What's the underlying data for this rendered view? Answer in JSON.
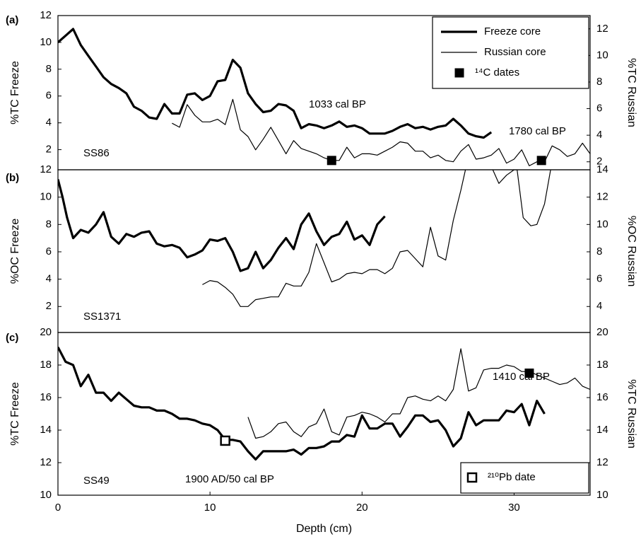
{
  "chart_data": [
    {
      "type": "line",
      "ylabel": "%TC Freeze",
      "y2label": "%TC Russian",
      "annotations": [
        "(a)",
        "SS86",
        "1033 cal BP",
        "1780 cal BP"
      ],
      "xlim": [
        0,
        35
      ],
      "ylim": [
        0.5,
        12
      ],
      "y2lim": [
        1.4,
        13
      ],
      "yticks": [
        2,
        4,
        6,
        8,
        10,
        12
      ],
      "y2ticks": [
        2,
        4,
        6,
        8,
        10,
        12
      ],
      "legend": "upper right",
      "series": [
        {
          "name": "Freeze core",
          "color": "#000000",
          "line_width": 3.2,
          "x": [
            0,
            0.5,
            1,
            1.5,
            2,
            2.5,
            3,
            3.5,
            4,
            4.5,
            5,
            5.5,
            6,
            6.5,
            7,
            7.5,
            8,
            8.5,
            9,
            9.5,
            10,
            10.5,
            11,
            11.5,
            12,
            12.5,
            13,
            13.5,
            14,
            14.5,
            15,
            15.5,
            16,
            16.5,
            17,
            17.5,
            18,
            18.5,
            19,
            19.5,
            20,
            20.5,
            21,
            21.5,
            22,
            22.5,
            23,
            23.5,
            24,
            24.5,
            25,
            25.5,
            26,
            26.5,
            27,
            27.5,
            28,
            28.5
          ],
          "values": [
            10,
            10.5,
            11,
            9.8,
            9,
            8.2,
            7.4,
            6.9,
            6.6,
            6.2,
            5.2,
            4.9,
            4.4,
            4.3,
            5.4,
            4.7,
            4.7,
            6.1,
            6.2,
            5.7,
            6,
            7.1,
            7.2,
            8.7,
            8.1,
            6.2,
            5.4,
            4.8,
            4.9,
            5.4,
            5.3,
            4.9,
            3.6,
            3.9,
            3.8,
            3.6,
            3.8,
            4.1,
            3.7,
            3.8,
            3.6,
            3.2,
            3.2,
            3.2,
            3.4,
            3.7,
            3.9,
            3.6,
            3.7,
            3.5,
            3.7,
            3.8,
            4.3,
            3.8,
            3.2,
            3,
            2.9,
            3.3
          ]
        },
        {
          "name": "Russian core",
          "color": "#000000",
          "line_width": 1.2,
          "axis": "y2",
          "x": [
            7.5,
            8,
            8.5,
            9,
            9.5,
            10,
            10.5,
            11,
            11.5,
            12,
            12.5,
            13,
            13.5,
            14,
            14.5,
            15,
            15.5,
            16,
            16.5,
            17,
            17.5,
            18,
            18.5,
            19,
            19.5,
            20,
            20.5,
            21,
            21.5,
            22,
            22.5,
            23,
            23.5,
            24,
            24.5,
            25,
            25.5,
            26,
            26.5,
            27,
            27.5,
            28,
            28.5,
            29,
            29.5,
            30,
            30.5,
            31,
            31.5,
            32,
            32.5,
            33,
            33.5,
            34,
            34.5,
            35
          ],
          "values": [
            4.9,
            4.6,
            6.3,
            5.5,
            5,
            5,
            5.2,
            4.8,
            6.7,
            4.4,
            3.9,
            2.9,
            3.7,
            4.6,
            3.6,
            2.6,
            3.6,
            3,
            2.8,
            2.6,
            2.3,
            2.1,
            2.1,
            3.1,
            2.3,
            2.6,
            2.6,
            2.5,
            2.8,
            3.1,
            3.5,
            3.4,
            2.8,
            2.8,
            2.3,
            2.5,
            2.1,
            2,
            2.8,
            3.3,
            2.2,
            2.3,
            2.5,
            3,
            1.9,
            2.2,
            2.9,
            1.7,
            2,
            2,
            3.2,
            2.9,
            2.4,
            2.6,
            3.4,
            2.6
          ]
        },
        {
          "name": "¹⁴C dates",
          "color": "#000000",
          "marker": "square",
          "axis": "y2",
          "x": [
            18,
            31.8
          ],
          "values": [
            2.1,
            2.1
          ]
        }
      ]
    },
    {
      "type": "line",
      "ylabel": "%OC Freeze",
      "y2label": "%OC Russian",
      "annotations": [
        "(b)",
        "SS1371"
      ],
      "xlim": [
        0,
        35
      ],
      "ylim": [
        0.1,
        12
      ],
      "y2lim": [
        2.1,
        14
      ],
      "yticks": [
        2,
        4,
        6,
        8,
        10,
        12
      ],
      "y2ticks": [
        4,
        6,
        8,
        10,
        12,
        14
      ],
      "series": [
        {
          "color": "#000000",
          "line_width": 3.2,
          "x": [
            0,
            0.3,
            0.6,
            1,
            1.5,
            2,
            2.5,
            3,
            3.5,
            4,
            4.5,
            5,
            5.5,
            6,
            6.5,
            7,
            7.5,
            8,
            8.5,
            9,
            9.5,
            10,
            10.5,
            11,
            11.5,
            12,
            12.5,
            13,
            13.5,
            14,
            14.5,
            15,
            15.5,
            16,
            16.5,
            17,
            17.5,
            18,
            18.5,
            19,
            19.5,
            20,
            20.5,
            21,
            21.5
          ],
          "values": [
            11.3,
            10,
            8.5,
            7,
            7.6,
            7.4,
            8,
            8.9,
            7.1,
            6.6,
            7.3,
            7.1,
            7.4,
            7.5,
            6.6,
            6.4,
            6.5,
            6.3,
            5.6,
            5.8,
            6.1,
            6.9,
            6.8,
            7,
            6,
            4.6,
            4.8,
            6,
            4.8,
            5.4,
            6.3,
            7,
            6.2,
            8,
            8.8,
            7.5,
            6.5,
            7.1,
            7.3,
            8.2,
            6.9,
            7.2,
            6.5,
            8,
            8.6
          ]
        },
        {
          "color": "#000000",
          "line_width": 1.2,
          "axis": "y2",
          "x": [
            9.5,
            10,
            10.5,
            11,
            11.5,
            12,
            12.5,
            13,
            13.5,
            14,
            14.5,
            15,
            15.5,
            16,
            16.5,
            17,
            17.5,
            18,
            18.5,
            19,
            19.5,
            20,
            20.5,
            21,
            21.5,
            22,
            22.5,
            23,
            23.5,
            24,
            24.5,
            25,
            25.5,
            26,
            26.5,
            26.8,
            27.5,
            28.6,
            29,
            29.5,
            30,
            30.2,
            30.6,
            31.1,
            31.5,
            32,
            32.4
          ],
          "values": [
            5.6,
            5.9,
            5.8,
            5.4,
            4.9,
            4,
            4,
            4.5,
            4.6,
            4.7,
            4.7,
            5.7,
            5.5,
            5.5,
            6.5,
            8.6,
            7.2,
            5.8,
            6,
            6.4,
            6.5,
            6.4,
            6.7,
            6.7,
            6.4,
            6.8,
            8,
            8.1,
            7.5,
            6.9,
            9.8,
            7.7,
            7.4,
            10.3,
            12.5,
            14,
            null,
            14,
            13,
            13.6,
            14,
            14,
            10.5,
            9.9,
            10,
            11.5,
            14
          ]
        }
      ]
    },
    {
      "type": "line",
      "ylabel": "%TC Freeze",
      "y2label": "%TC Russian",
      "xlabel": "Depth (cm)",
      "annotations": [
        "(c)",
        "SS49",
        "1410 cal BP",
        "1900 AD/50 cal BP"
      ],
      "xlim": [
        0,
        35
      ],
      "ylim": [
        10,
        20
      ],
      "y2lim": [
        10,
        20
      ],
      "xticks": [
        0,
        10,
        20,
        30
      ],
      "yticks": [
        10,
        12,
        14,
        16,
        18,
        20
      ],
      "y2ticks": [
        10,
        12,
        14,
        16,
        18,
        20
      ],
      "legend": "lower right",
      "series": [
        {
          "color": "#000000",
          "line_width": 3.2,
          "x": [
            0,
            0.5,
            1,
            1.5,
            2,
            2.5,
            3,
            3.5,
            4,
            4.5,
            5,
            5.5,
            6,
            6.5,
            7,
            7.5,
            8,
            8.5,
            9,
            9.5,
            10,
            10.5,
            11,
            11.5,
            12,
            12.5,
            13,
            13.5,
            14,
            14.5,
            15,
            15.5,
            16,
            16.5,
            17,
            17.5,
            18,
            18.5,
            19,
            19.5,
            20,
            20.5,
            21,
            21.5,
            22,
            22.5,
            23,
            23.5,
            24,
            24.5,
            25,
            25.5,
            26,
            26.5,
            27,
            27.5,
            28,
            28.5,
            29,
            29.5,
            30,
            30.5,
            31,
            31.5,
            32
          ],
          "values": [
            19.1,
            18.2,
            18,
            16.7,
            17.4,
            16.3,
            16.3,
            15.8,
            16.3,
            15.9,
            15.5,
            15.4,
            15.4,
            15.2,
            15.2,
            15,
            14.7,
            14.7,
            14.6,
            14.4,
            14.3,
            14,
            13.4,
            13.4,
            13.3,
            12.7,
            12.2,
            12.7,
            12.7,
            12.7,
            12.7,
            12.8,
            12.5,
            12.9,
            12.9,
            13,
            13.3,
            13.3,
            13.7,
            13.6,
            14.9,
            14.1,
            14.1,
            14.4,
            14.4,
            13.6,
            14.2,
            14.9,
            14.9,
            14.5,
            14.6,
            14,
            13,
            13.5,
            15.1,
            14.3,
            14.6,
            14.6,
            14.6,
            15.2,
            15.1,
            15.6,
            14.3,
            15.8,
            15
          ]
        },
        {
          "color": "#000000",
          "line_width": 1.2,
          "axis": "y2",
          "x": [
            12.5,
            13,
            13.5,
            14,
            14.5,
            15,
            15.5,
            16,
            16.5,
            17,
            17.5,
            18,
            18.5,
            19,
            19.5,
            20,
            20.5,
            21,
            21.5,
            22,
            22.5,
            23,
            23.5,
            24,
            24.5,
            25,
            25.5,
            26,
            26.5,
            27,
            27.5,
            28,
            28.5,
            29,
            29.5,
            30,
            30.5,
            31,
            31.5,
            32,
            32.5,
            33,
            33.5,
            34,
            34.5,
            35
          ],
          "values": [
            14.8,
            13.5,
            13.6,
            13.9,
            14.4,
            14.5,
            13.9,
            13.6,
            14.2,
            14.4,
            15.3,
            13.9,
            13.7,
            14.8,
            14.9,
            15.1,
            15,
            14.8,
            14.5,
            15,
            15,
            16,
            16.1,
            15.9,
            15.8,
            16.1,
            15.8,
            16.5,
            19,
            16.4,
            16.6,
            17.7,
            17.8,
            17.8,
            18,
            17.9,
            17.6,
            17.6,
            17.4,
            17.2,
            17,
            16.8,
            16.9,
            17.2,
            16.7,
            16.5
          ]
        },
        {
          "color": "#000000",
          "marker": "square",
          "axis": "y2",
          "x": [
            31
          ],
          "values": [
            17.5
          ]
        },
        {
          "name": "²¹⁰Pb date",
          "color": "#000000",
          "marker": "open-square",
          "x": [
            11
          ],
          "values": [
            13.35
          ]
        }
      ]
    }
  ]
}
